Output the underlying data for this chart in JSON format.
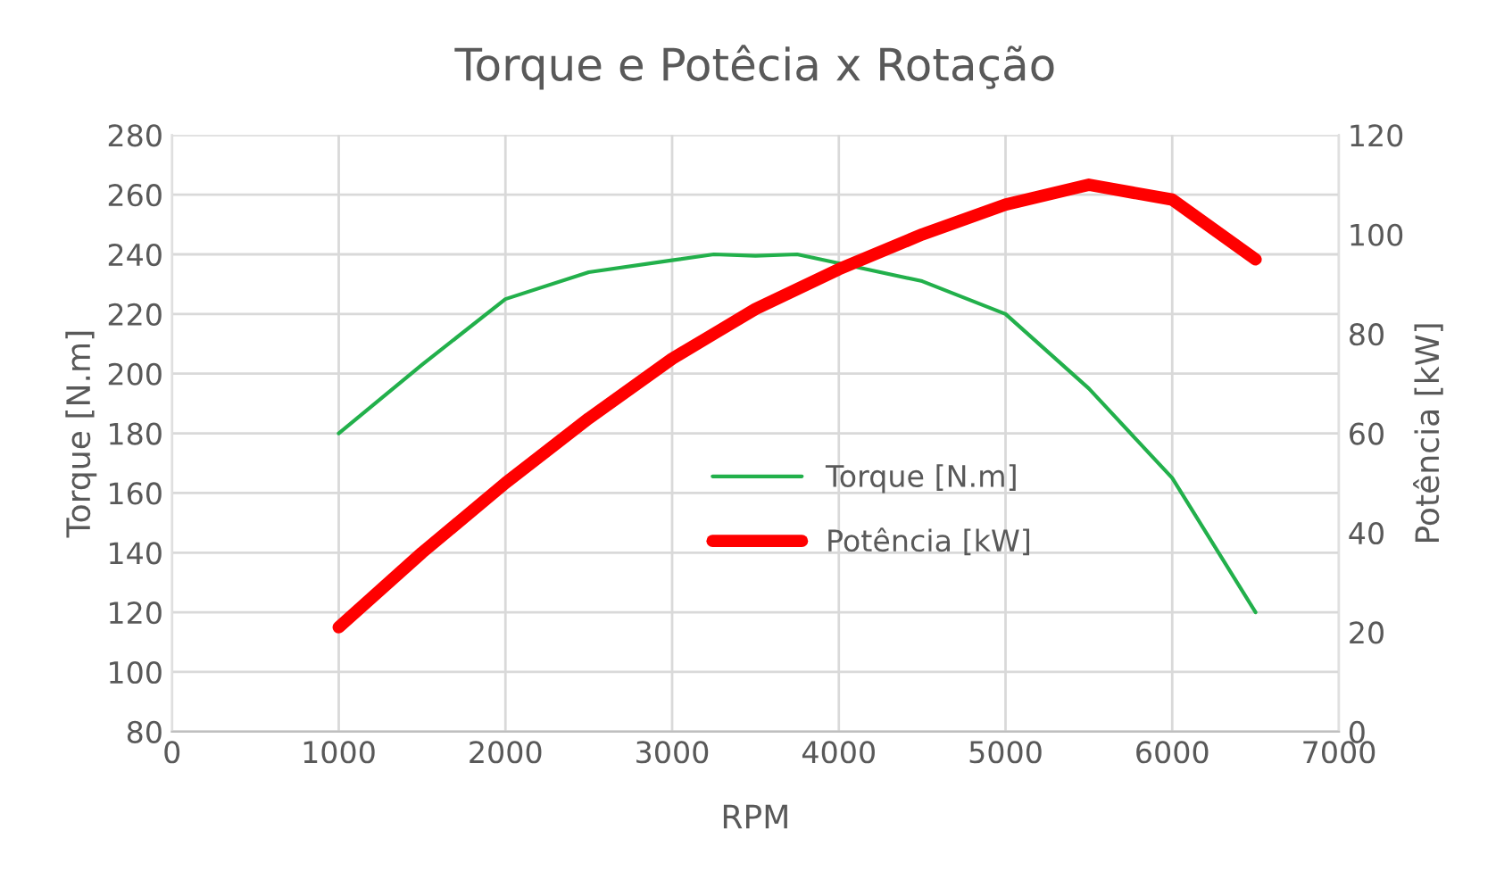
{
  "chart_data": {
    "type": "line",
    "title": "Torque e Potêcia x Rotação",
    "xlabel": "RPM",
    "ylabel": "Torque [N.m]",
    "y2label": "Potência [kW]",
    "x": [
      1000,
      1500,
      2000,
      2500,
      3000,
      3250,
      3500,
      3750,
      4000,
      4500,
      5000,
      5500,
      6000,
      6500
    ],
    "series": [
      {
        "name": "Torque [N.m]",
        "color": "#22b04b",
        "values": [
          180,
          203,
          225,
          234,
          238,
          240,
          239.5,
          240,
          237,
          231,
          220,
          195,
          165,
          120
        ]
      },
      {
        "name": "Potência [kW]",
        "color": "#ff0000",
        "axis": "y2",
        "values": [
          21,
          36,
          50,
          63,
          75,
          80,
          85,
          89,
          93,
          100,
          106,
          110,
          107,
          95
        ]
      }
    ],
    "xlim": [
      0,
      7000
    ],
    "xticks": [
      0,
      1000,
      2000,
      3000,
      4000,
      5000,
      6000,
      7000
    ],
    "ylim": [
      80,
      280
    ],
    "yticks": [
      80,
      100,
      120,
      140,
      160,
      180,
      200,
      220,
      240,
      260,
      280
    ],
    "y2lim": [
      0,
      120
    ],
    "y2ticks": [
      0,
      20,
      40,
      60,
      80,
      100,
      120
    ],
    "grid": true,
    "legend": "center",
    "marker": "none",
    "line_style": "solid"
  }
}
